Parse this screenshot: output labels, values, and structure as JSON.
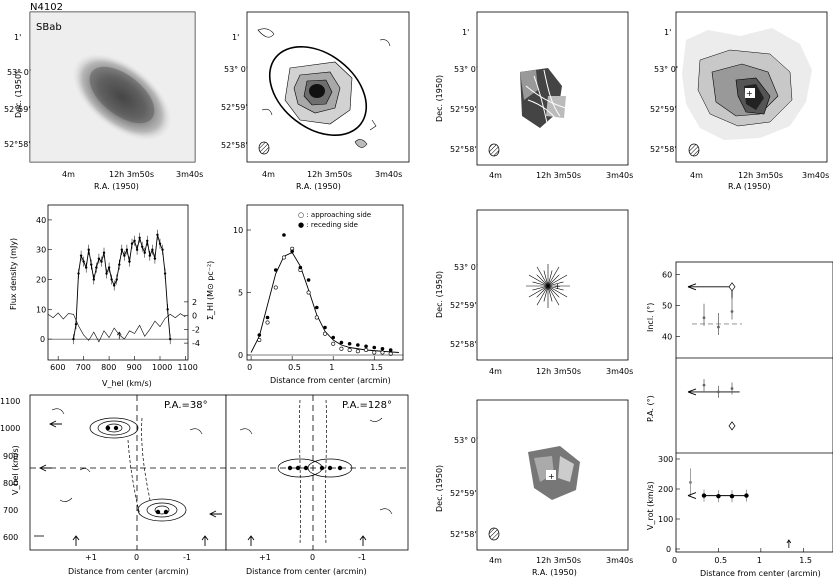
{
  "header": {
    "galaxy": "N4102"
  },
  "image_panel": {
    "morph_type": "SBab"
  },
  "sky_axes": {
    "ra_label": "R.A. (1950)",
    "ra_label_alt": "R.A (1950)",
    "dec_label": "Dec. (1950)",
    "ra_ticks": [
      "4m",
      "12h 3m50s",
      "3m40s"
    ],
    "dec_ticks": [
      "1'",
      "53° 0'",
      "52°59'",
      "52°58'"
    ]
  },
  "chart_data": [
    {
      "type": "line",
      "panel": "global-profile",
      "xlabel": "V_hel (km/s)",
      "ylabel": "Flux density (mJy)",
      "x_ticks": [
        "600",
        "700",
        "800",
        "900",
        "1000",
        "1100"
      ],
      "y_ticks": [
        "0",
        "10",
        "20",
        "30",
        "40"
      ],
      "y2_ticks": [
        "2",
        "0",
        "-2",
        "-4"
      ],
      "xlim": [
        560,
        1110
      ],
      "ylim": [
        -7,
        45
      ],
      "profile": {
        "x": [
          660,
          670,
          680,
          690,
          700,
          710,
          720,
          730,
          740,
          750,
          760,
          770,
          780,
          790,
          800,
          810,
          820,
          830,
          840,
          850,
          860,
          870,
          880,
          890,
          900,
          910,
          920,
          930,
          940,
          950,
          960,
          970,
          980,
          990,
          1000,
          1010,
          1020,
          1030,
          1040
        ],
        "y": [
          0,
          5,
          22,
          28,
          26,
          24,
          30,
          25,
          20,
          24,
          27,
          26,
          29,
          22,
          24,
          20,
          18,
          20,
          25,
          30,
          28,
          30,
          26,
          32,
          33,
          30,
          34,
          31,
          29,
          33,
          28,
          30,
          27,
          35,
          32,
          30,
          22,
          10,
          0
        ]
      },
      "residual": {
        "x": [
          560,
          580,
          600,
          620,
          640,
          660,
          680,
          700,
          720,
          740,
          760,
          780,
          800,
          820,
          840,
          860,
          880,
          900,
          920,
          940,
          960,
          980,
          1000,
          1020,
          1040,
          1060,
          1080,
          1100
        ],
        "y": [
          0.2,
          -0.3,
          0.4,
          -0.5,
          0.3,
          0.2,
          -1.5,
          -2.8,
          -3.6,
          -2.4,
          -3.8,
          -2.2,
          -3.2,
          -1.8,
          -2.8,
          -3.4,
          -2.2,
          -2.6,
          -1.4,
          -3.0,
          -2.0,
          -0.8,
          -1.6,
          -0.4,
          0.2,
          -0.3,
          0.3,
          -0.2
        ]
      },
      "systemic_marker": 840
    },
    {
      "type": "scatter",
      "panel": "radial-profile",
      "xlabel": "Distance from center (arcmin)",
      "ylabel": "Σ_HI (M⊙ pc⁻²)",
      "legend": [
        "○ : approaching side",
        "● : receding side"
      ],
      "x_ticks": [
        "0",
        "0.5",
        "1",
        "1.5"
      ],
      "y_ticks": [
        "0",
        "5",
        "10"
      ],
      "xlim": [
        -0.05,
        1.85
      ],
      "ylim": [
        -0.4,
        12
      ],
      "fit": {
        "x": [
          0,
          0.1,
          0.2,
          0.3,
          0.4,
          0.5,
          0.6,
          0.7,
          0.8,
          0.9,
          1.0,
          1.1,
          1.2,
          1.4,
          1.6,
          1.8
        ],
        "y": [
          0.2,
          1.5,
          4.0,
          6.5,
          7.9,
          8.2,
          7.1,
          5.2,
          3.2,
          1.9,
          1.2,
          0.8,
          0.6,
          0.4,
          0.3,
          0.2
        ]
      },
      "approaching": {
        "x": [
          0.1,
          0.2,
          0.3,
          0.4,
          0.5,
          0.6,
          0.7,
          0.8,
          0.9,
          1.0,
          1.1,
          1.2,
          1.3,
          1.4,
          1.5,
          1.6,
          1.7
        ],
        "y": [
          1.2,
          2.6,
          5.4,
          7.8,
          8.5,
          6.8,
          5.0,
          3.0,
          1.7,
          0.9,
          0.5,
          0.4,
          0.3,
          0.4,
          0.2,
          0.2,
          0.1
        ]
      },
      "receding": {
        "x": [
          0.1,
          0.2,
          0.3,
          0.4,
          0.5,
          0.6,
          0.7,
          0.8,
          0.9,
          1.0,
          1.1,
          1.2,
          1.3,
          1.4,
          1.5,
          1.6,
          1.7
        ],
        "y": [
          1.6,
          3.0,
          6.8,
          9.6,
          8.3,
          7.0,
          6.0,
          3.8,
          2.2,
          1.4,
          1.0,
          0.9,
          0.8,
          0.7,
          0.6,
          0.5,
          0.4
        ]
      }
    },
    {
      "type": "line",
      "panel": "rotation-curve",
      "xlabel": "Distance from center (arcmin)",
      "x_ticks": [
        "0",
        "0.5",
        "1",
        "1.5"
      ],
      "inclination": {
        "ylabel": "Incl. (°)",
        "y_ticks": [
          "40",
          "50",
          "60"
        ],
        "ylim": [
          33,
          64
        ],
        "points_x": [
          0.33,
          0.5,
          0.66
        ],
        "points_y": [
          46,
          43,
          48
        ],
        "adopted": 56,
        "diamond": {
          "x": 0.66,
          "y": 56
        }
      },
      "position_angle": {
        "ylabel": "P.A. (°)",
        "adopted": 38,
        "points_x": [
          0.33,
          0.5,
          0.66
        ],
        "points_y": [
          40,
          38,
          39
        ],
        "diamond_y": 28,
        "ylim": [
          20,
          48
        ]
      },
      "velocity": {
        "ylabel": "V_rot (km/s)",
        "y_ticks": [
          "0",
          "100",
          "200",
          "300"
        ],
        "ylim": [
          -10,
          320
        ],
        "x": [
          0.17,
          0.33,
          0.5,
          0.66,
          0.83
        ],
        "y": [
          222,
          178,
          176,
          176,
          178
        ],
        "arrow_x": 1.33
      }
    }
  ],
  "pv_diagrams": {
    "ylabel": "V_hel (km/s)",
    "xlabel": "Distance from center (arcmin)",
    "y_ticks": [
      "600",
      "700",
      "800",
      "900",
      "1000",
      "1100"
    ],
    "x_ticks": [
      "+1",
      "0",
      "-1"
    ],
    "left_pa": "P.A.=38°",
    "right_pa": "P.A.=128°"
  }
}
